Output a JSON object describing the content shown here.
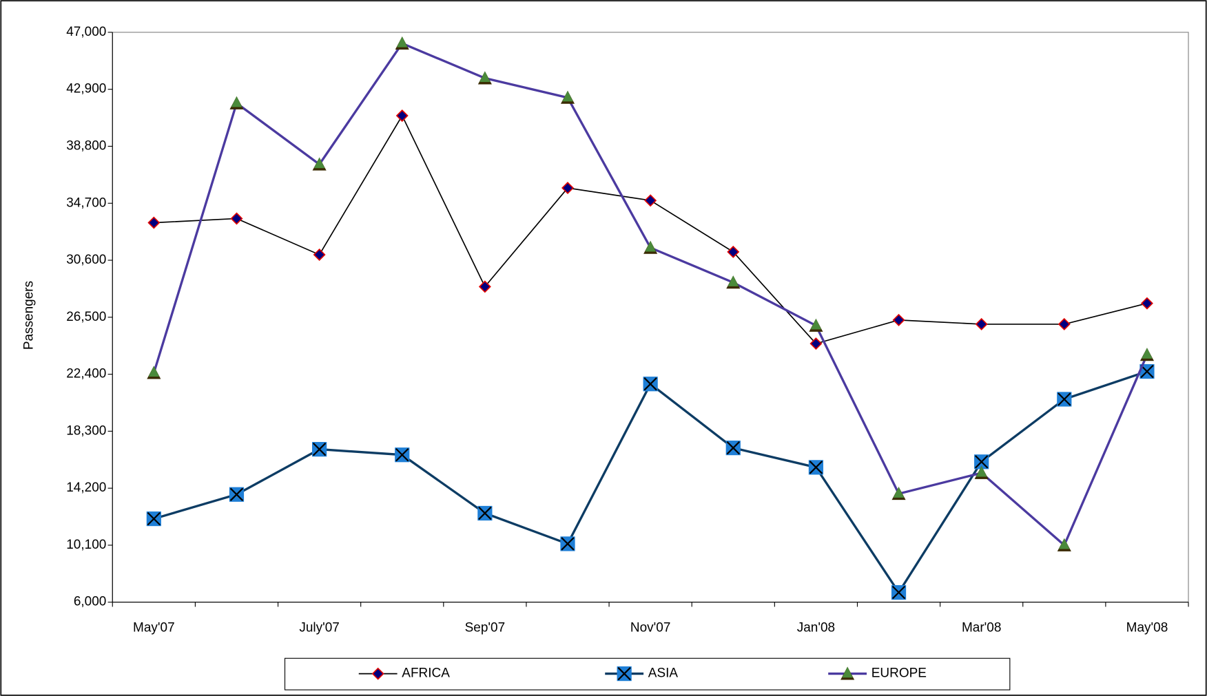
{
  "chart_data": {
    "type": "line",
    "y_label": "Passengers",
    "categories": [
      "May'07",
      null,
      "July'07",
      null,
      "Sep'07",
      null,
      "Nov'07",
      null,
      "Jan'08",
      null,
      "Mar'08",
      null,
      "May'08"
    ],
    "ylim": [
      6000,
      47000
    ],
    "yticks": [
      {
        "value": 6000,
        "label": "6,000"
      },
      {
        "value": 10100,
        "label": "10,100"
      },
      {
        "value": 14200,
        "label": "14,200"
      },
      {
        "value": 18300,
        "label": "18,300"
      },
      {
        "value": 22400,
        "label": "22,400"
      },
      {
        "value": 26500,
        "label": "26,500"
      },
      {
        "value": 30600,
        "label": "30,600"
      },
      {
        "value": 34700,
        "label": "34,700"
      },
      {
        "value": 38800,
        "label": "38,800"
      },
      {
        "value": 42900,
        "label": "42,900"
      },
      {
        "value": 47000,
        "label": "47,000"
      }
    ],
    "grid": false,
    "legend": "bottom",
    "series": [
      {
        "name": "AFRICA",
        "color": "#000000",
        "marker": "diamond",
        "marker_fill": "#000080",
        "marker_stroke": "#e00000",
        "values": [
          33300,
          33600,
          31000,
          41000,
          28700,
          35800,
          34900,
          31200,
          24600,
          26300,
          26000,
          26000,
          27500
        ]
      },
      {
        "name": "ASIA",
        "color": "#0d3c64",
        "marker": "square-x",
        "marker_fill": "#1f7fd6",
        "marker_stroke": "#000000",
        "values": [
          12000,
          13750,
          17000,
          16600,
          12400,
          10200,
          21700,
          17100,
          15700,
          6700,
          16100,
          20600,
          22600
        ]
      },
      {
        "name": "EUROPE",
        "color": "#4b3aa0",
        "marker": "triangle",
        "marker_fill": "#4a8a3a",
        "marker_stroke": "#3a2a00",
        "values": [
          22500,
          41900,
          37500,
          46200,
          43700,
          42300,
          31500,
          29000,
          25900,
          13800,
          15300,
          10100,
          23800
        ]
      }
    ]
  }
}
